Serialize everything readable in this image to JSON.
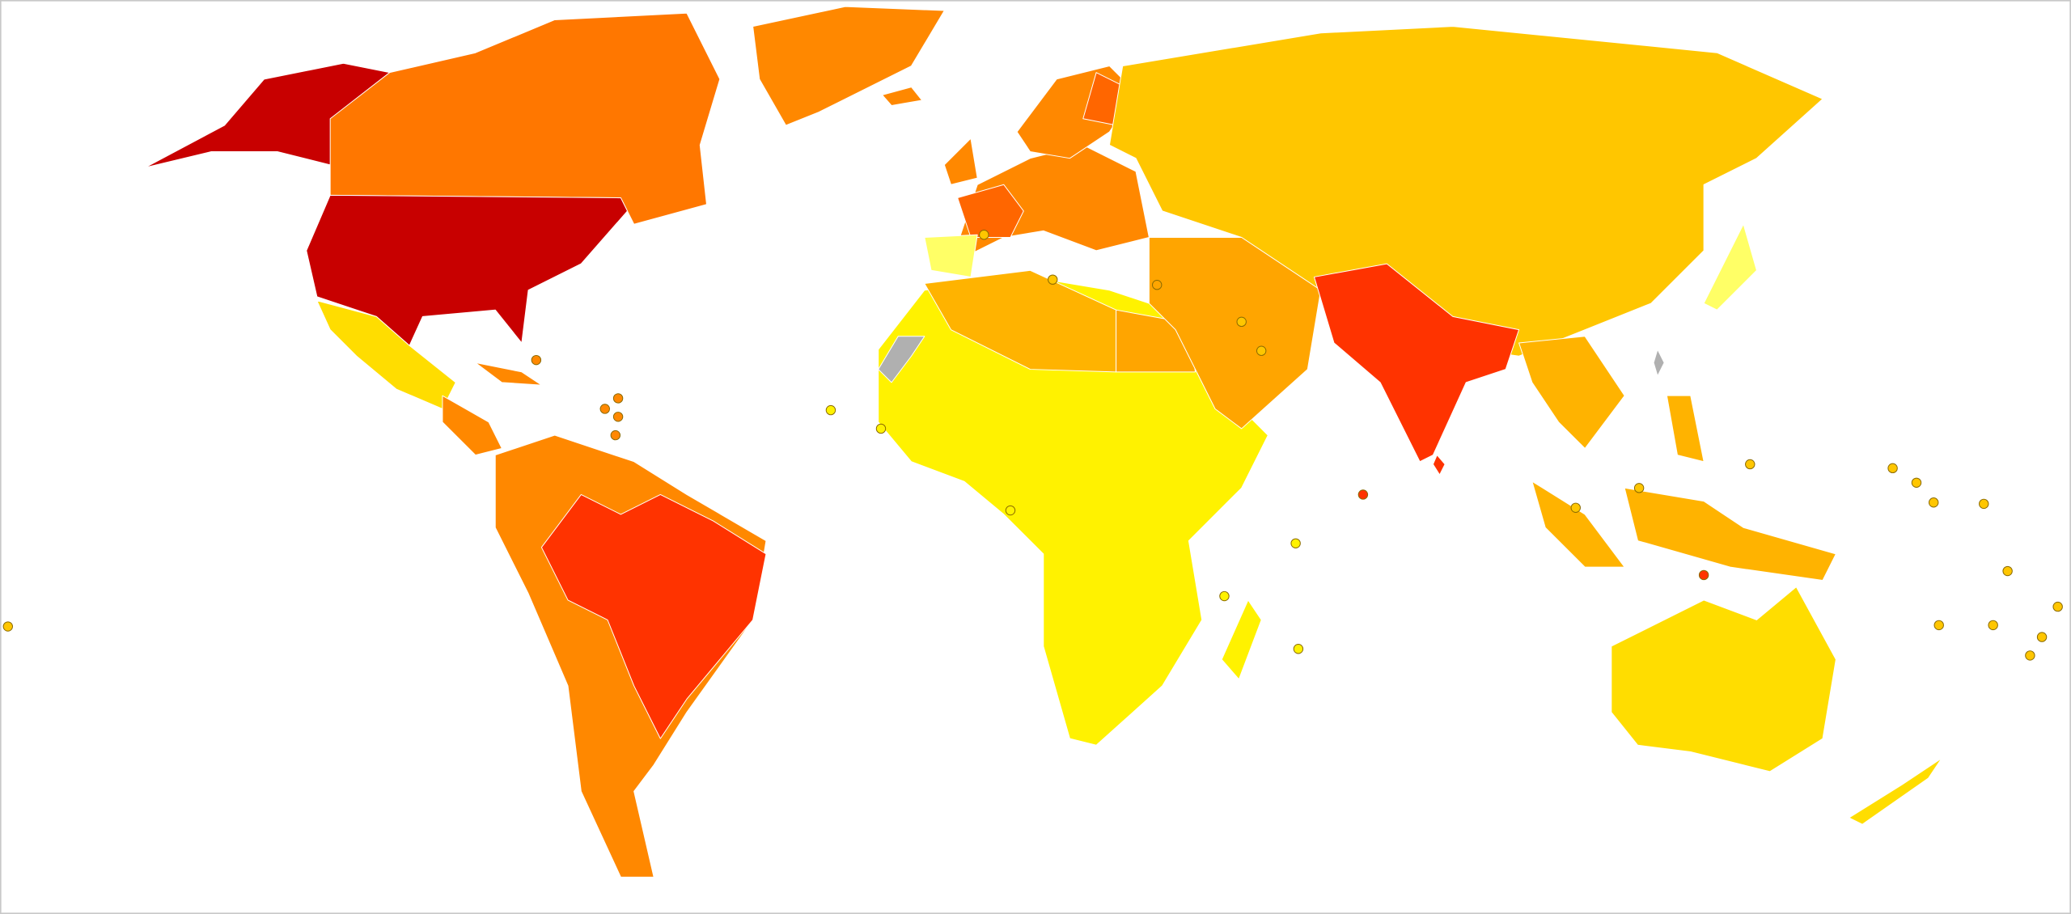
{
  "map": {
    "colors": [
      "#c80000",
      "#ff3300",
      "#ff6600",
      "#ff7700",
      "#ff8800",
      "#ffa500",
      "#ffb300",
      "#ffc600",
      "#ffdd00",
      "#fff200",
      "#ffff66",
      "#b0b0b0"
    ],
    "border": "#ffffff"
  }
}
